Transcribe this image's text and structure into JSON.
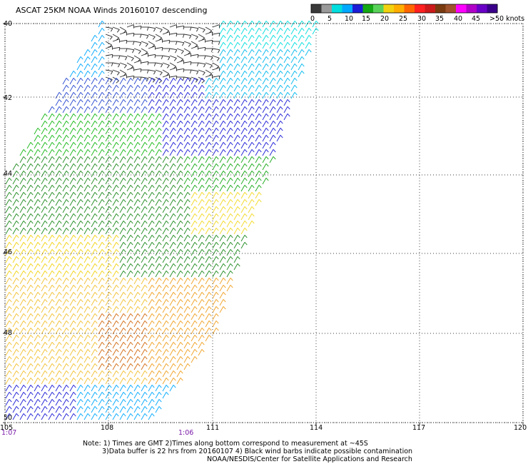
{
  "title": "ASCAT 25KM NOAA Winds 20160107 descending",
  "legend": {
    "colors": [
      "#3a3a3a",
      "#9a9a9a",
      "#00dede",
      "#00a8ff",
      "#1c1cd6",
      "#14a814",
      "#5ad25a",
      "#f2d210",
      "#ffae00",
      "#ff6600",
      "#ff2020",
      "#cc1a1a",
      "#7a3a10",
      "#a0522d",
      "#ff00ff",
      "#b000c8",
      "#6a00c8",
      "#3a008a"
    ],
    "labels": [
      "0",
      "5",
      "10",
      "15",
      "20",
      "25",
      "30",
      "35",
      "40",
      "45",
      ">50 knots"
    ]
  },
  "axes": {
    "lon_labels": [
      "105",
      "108",
      "111",
      "114",
      "117",
      "120"
    ],
    "lat_labels": [
      "40",
      "42",
      "44",
      "46",
      "48",
      "50"
    ]
  },
  "times": [
    "1:07",
    "1:06"
  ],
  "notes": {
    "line1": "Note: 1) Times are GMT 2)Times along bottom correspond to measurement at ~45S",
    "line2": "3)Data buffer is 22 hrs from 20160107 4) Black wind barbs indicate possible contamination",
    "line3": "NOAA/NESDIS/Center for Satellite Applications and Research"
  }
}
